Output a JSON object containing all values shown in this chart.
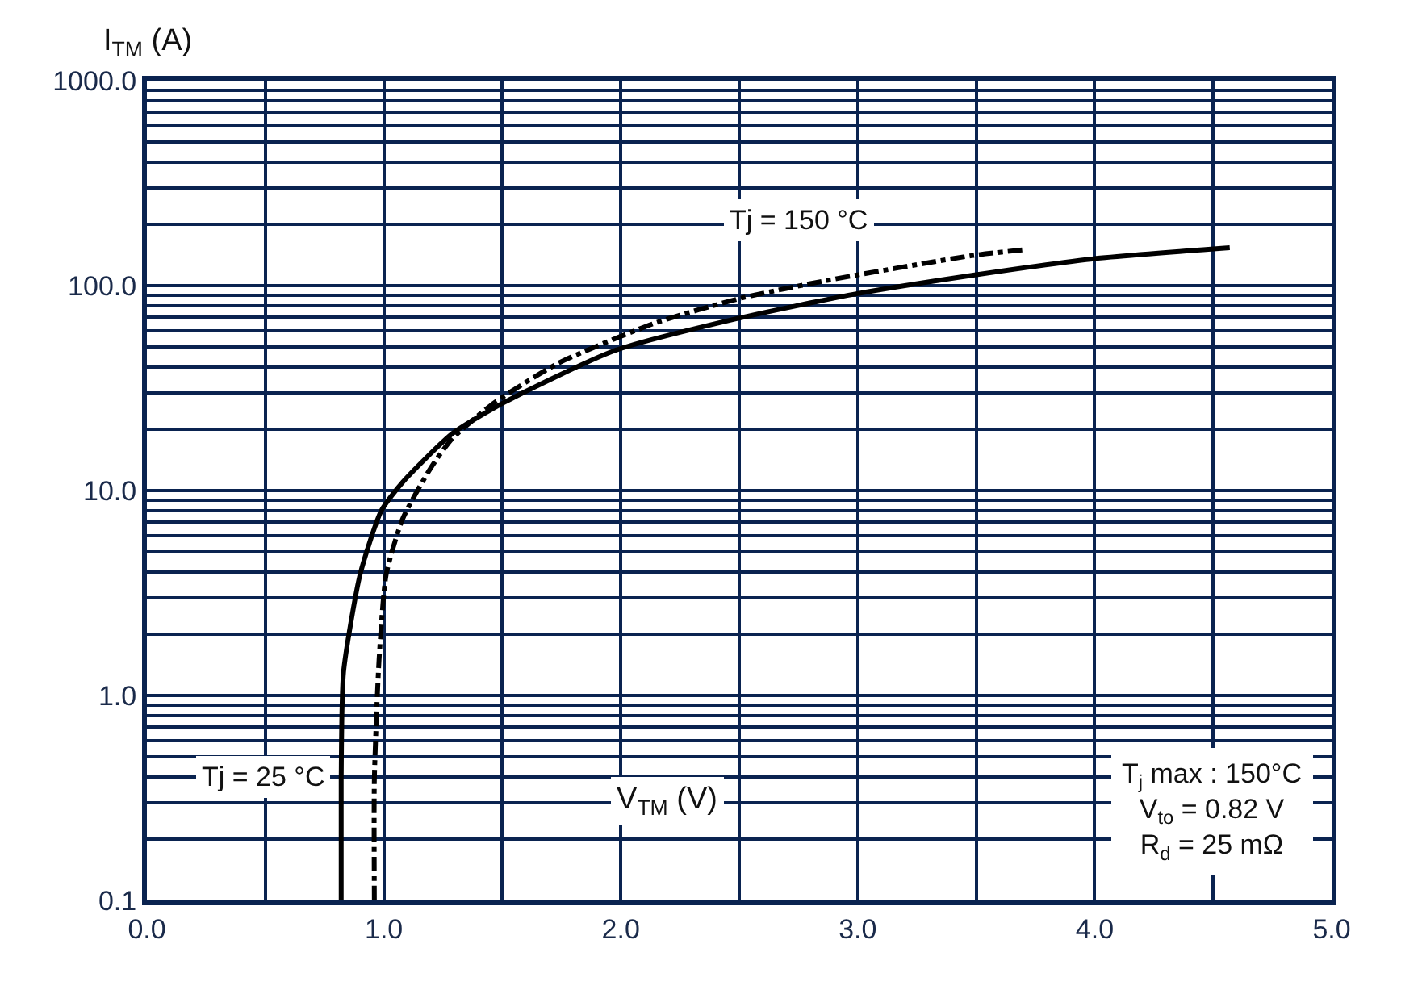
{
  "chart_data": {
    "type": "line",
    "xlabel": "V$_{TM}$ (V)",
    "ylabel": "I$_{TM}$ (A)",
    "log": "y",
    "grid": true,
    "marker": "none",
    "xlim": [
      0,
      5
    ],
    "ylim": [
      0.1,
      1000
    ],
    "xticks": [
      {
        "value": 0,
        "label": "0.0"
      },
      {
        "value": 0.5,
        "label": null
      },
      {
        "value": 1,
        "label": "1.0"
      },
      {
        "value": 1.5,
        "label": null
      },
      {
        "value": 2,
        "label": "2.0"
      },
      {
        "value": 2.5,
        "label": null
      },
      {
        "value": 3,
        "label": "3.0"
      },
      {
        "value": 3.5,
        "label": null
      },
      {
        "value": 4,
        "label": "4.0"
      },
      {
        "value": 4.5,
        "label": null
      },
      {
        "value": 5,
        "label": "5.0"
      }
    ],
    "yticks": [
      {
        "value": 0.1,
        "label": "0.1"
      },
      {
        "value": 0.2,
        "label": null
      },
      {
        "value": 0.3,
        "label": null
      },
      {
        "value": 0.4,
        "label": null
      },
      {
        "value": 0.5,
        "label": null
      },
      {
        "value": 0.6,
        "label": null
      },
      {
        "value": 0.7,
        "label": null
      },
      {
        "value": 0.8,
        "label": null
      },
      {
        "value": 0.9,
        "label": null
      },
      {
        "value": 1,
        "label": "1.0"
      },
      {
        "value": 2,
        "label": null
      },
      {
        "value": 3,
        "label": null
      },
      {
        "value": 4,
        "label": null
      },
      {
        "value": 5,
        "label": null
      },
      {
        "value": 6,
        "label": null
      },
      {
        "value": 7,
        "label": null
      },
      {
        "value": 8,
        "label": null
      },
      {
        "value": 9,
        "label": null
      },
      {
        "value": 10,
        "label": "10.0"
      },
      {
        "value": 20,
        "label": null
      },
      {
        "value": 30,
        "label": null
      },
      {
        "value": 40,
        "label": null
      },
      {
        "value": 50,
        "label": null
      },
      {
        "value": 60,
        "label": null
      },
      {
        "value": 70,
        "label": null
      },
      {
        "value": 80,
        "label": null
      },
      {
        "value": 90,
        "label": null
      },
      {
        "value": 100,
        "label": "100.0"
      },
      {
        "value": 200,
        "label": null
      },
      {
        "value": 300,
        "label": null
      },
      {
        "value": 400,
        "label": null
      },
      {
        "value": 500,
        "label": null
      },
      {
        "value": 600,
        "label": null
      },
      {
        "value": 700,
        "label": null
      },
      {
        "value": 800,
        "label": null
      },
      {
        "value": 900,
        "label": null
      },
      {
        "value": 1000,
        "label": "1000.0"
      }
    ],
    "series": [
      {
        "color": "#000000",
        "line_style": "solid",
        "x": [
          0.82,
          0.82,
          0.83,
          0.9,
          0.99,
          1.08,
          1.29,
          1.51,
          1.97,
          2.49,
          2.99,
          3.5,
          3.99,
          4.57
        ],
        "values": [
          0.1,
          0.39,
          1.3,
          3.9,
          8,
          11,
          19,
          27,
          48,
          69,
          91,
          113,
          135,
          153
        ]
      },
      {
        "color": "#000000",
        "line_style": "dashed",
        "x": [
          0.96,
          0.96,
          0.98,
          1.01,
          1.08,
          1.2,
          1.29,
          1.47,
          1.74,
          2.15,
          2.51,
          2.87,
          3.48,
          3.71
        ],
        "values": [
          0.1,
          0.39,
          1.5,
          3.9,
          7.3,
          13,
          18,
          27,
          42,
          66,
          87,
          106,
          140,
          150
        ]
      }
    ],
    "annotations": [
      "Tj = 150 °C",
      "Tj = 25 °C",
      "T$_{j}$ max : 150°C\nV$_{to}$ = 0.82 V\nR$_{d}$ = 25 mΩ"
    ]
  }
}
